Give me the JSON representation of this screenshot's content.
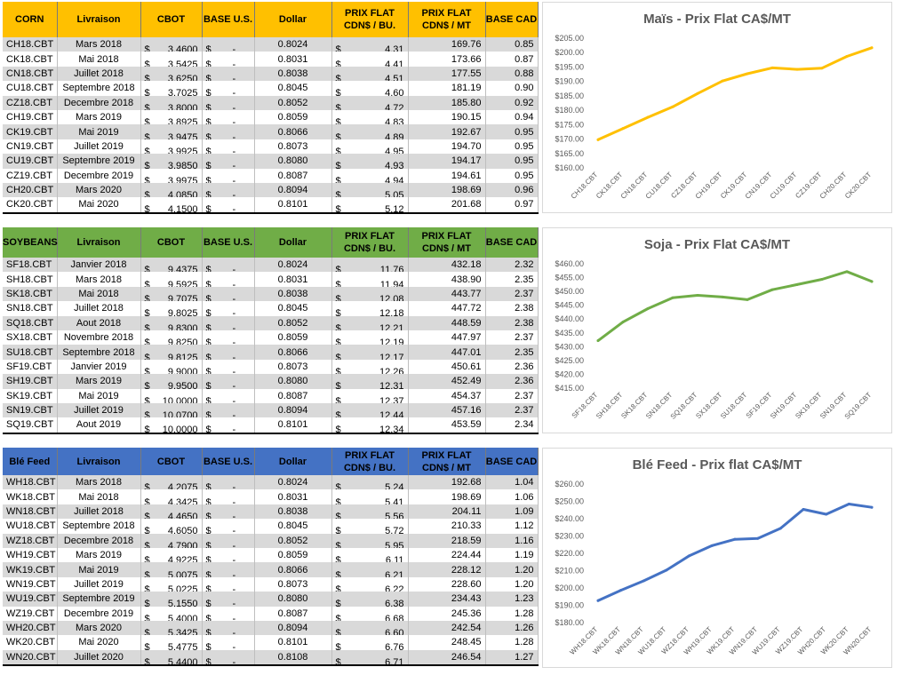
{
  "tables": [
    {
      "id": "corn",
      "headers": [
        "CORN",
        "Livraison",
        "CBOT",
        "BASE U.S.",
        "Dollar",
        "PRIX FLAT\nCDN$ / BU.",
        "PRIX FLAT\nCDN$ / MT",
        "BASE CAD"
      ],
      "rows": [
        [
          "CH18.CBT",
          "Mars 2018",
          "3.4600",
          "-",
          "0.8024",
          "4.31",
          "169.76",
          "0.85"
        ],
        [
          "CK18.CBT",
          "Mai 2018",
          "3.5425",
          "-",
          "0.8031",
          "4.41",
          "173.66",
          "0.87"
        ],
        [
          "CN18.CBT",
          "Juillet 2018",
          "3.6250",
          "-",
          "0.8038",
          "4.51",
          "177.55",
          "0.88"
        ],
        [
          "CU18.CBT",
          "Septembre 2018",
          "3.7025",
          "-",
          "0.8045",
          "4.60",
          "181.19",
          "0.90"
        ],
        [
          "CZ18.CBT",
          "Decembre 2018",
          "3.8000",
          "-",
          "0.8052",
          "4.72",
          "185.80",
          "0.92"
        ],
        [
          "CH19.CBT",
          "Mars 2019",
          "3.8925",
          "-",
          "0.8059",
          "4.83",
          "190.15",
          "0.94"
        ],
        [
          "CK19.CBT",
          "Mai 2019",
          "3.9475",
          "-",
          "0.8066",
          "4.89",
          "192.67",
          "0.95"
        ],
        [
          "CN19.CBT",
          "Juillet 2019",
          "3.9925",
          "-",
          "0.8073",
          "4.95",
          "194.70",
          "0.95"
        ],
        [
          "CU19.CBT",
          "Septembre 2019",
          "3.9850",
          "-",
          "0.8080",
          "4.93",
          "194.17",
          "0.95"
        ],
        [
          "CZ19.CBT",
          "Decembre 2019",
          "3.9975",
          "-",
          "0.8087",
          "4.94",
          "194.61",
          "0.95"
        ],
        [
          "CH20.CBT",
          "Mars 2020",
          "4.0850",
          "-",
          "0.8094",
          "5.05",
          "198.69",
          "0.96"
        ],
        [
          "CK20.CBT",
          "Mai 2020",
          "4.1500",
          "-",
          "0.8101",
          "5.12",
          "201.68",
          "0.97"
        ]
      ]
    },
    {
      "id": "soy",
      "headers": [
        "SOYBEANS",
        "Livraison",
        "CBOT",
        "BASE U.S.",
        "Dollar",
        "PRIX FLAT\nCDN$ / BU.",
        "PRIX FLAT\nCDN$ / MT",
        "BASE CAD"
      ],
      "rows": [
        [
          "SF18.CBT",
          "Janvier 2018",
          "9.4375",
          "-",
          "0.8024",
          "11.76",
          "432.18",
          "2.32"
        ],
        [
          "SH18.CBT",
          "Mars 2018",
          "9.5925",
          "-",
          "0.8031",
          "11.94",
          "438.90",
          "2.35"
        ],
        [
          "SK18.CBT",
          "Mai 2018",
          "9.7075",
          "-",
          "0.8038",
          "12.08",
          "443.77",
          "2.37"
        ],
        [
          "SN18.CBT",
          "Juillet 2018",
          "9.8025",
          "-",
          "0.8045",
          "12.18",
          "447.72",
          "2.38"
        ],
        [
          "SQ18.CBT",
          "Aout 2018",
          "9.8300",
          "-",
          "0.8052",
          "12.21",
          "448.59",
          "2.38"
        ],
        [
          "SX18.CBT",
          "Novembre 2018",
          "9.8250",
          "-",
          "0.8059",
          "12.19",
          "447.97",
          "2.37"
        ],
        [
          "SU18.CBT",
          "Septembre 2018",
          "9.8125",
          "-",
          "0.8066",
          "12.17",
          "447.01",
          "2.35"
        ],
        [
          "SF19.CBT",
          "Janvier 2019",
          "9.9000",
          "-",
          "0.8073",
          "12.26",
          "450.61",
          "2.36"
        ],
        [
          "SH19.CBT",
          "Mars 2019",
          "9.9500",
          "-",
          "0.8080",
          "12.31",
          "452.49",
          "2.36"
        ],
        [
          "SK19.CBT",
          "Mai 2019",
          "10.0000",
          "-",
          "0.8087",
          "12.37",
          "454.37",
          "2.37"
        ],
        [
          "SN19.CBT",
          "Juillet 2019",
          "10.0700",
          "-",
          "0.8094",
          "12.44",
          "457.16",
          "2.37"
        ],
        [
          "SQ19.CBT",
          "Aout 2019",
          "10.0000",
          "-",
          "0.8101",
          "12.34",
          "453.59",
          "2.34"
        ]
      ]
    },
    {
      "id": "ble",
      "headers": [
        "Blé Feed",
        "Livraison",
        "CBOT",
        "BASE U.S.",
        "Dollar",
        "PRIX FLAT\nCDN$ / BU.",
        "PRIX FLAT\nCDN$ / MT",
        "BASE CAD"
      ],
      "rows": [
        [
          "WH18.CBT",
          "Mars 2018",
          "4.2075",
          "-",
          "0.8024",
          "5.24",
          "192.68",
          "1.04"
        ],
        [
          "WK18.CBT",
          "Mai 2018",
          "4.3425",
          "-",
          "0.8031",
          "5.41",
          "198.69",
          "1.06"
        ],
        [
          "WN18.CBT",
          "Juillet 2018",
          "4.4650",
          "-",
          "0.8038",
          "5.56",
          "204.11",
          "1.09"
        ],
        [
          "WU18.CBT",
          "Septembre 2018",
          "4.6050",
          "-",
          "0.8045",
          "5.72",
          "210.33",
          "1.12"
        ],
        [
          "WZ18.CBT",
          "Decembre 2018",
          "4.7900",
          "-",
          "0.8052",
          "5.95",
          "218.59",
          "1.16"
        ],
        [
          "WH19.CBT",
          "Mars 2019",
          "4.9225",
          "-",
          "0.8059",
          "6.11",
          "224.44",
          "1.19"
        ],
        [
          "WK19.CBT",
          "Mai 2019",
          "5.0075",
          "-",
          "0.8066",
          "6.21",
          "228.12",
          "1.20"
        ],
        [
          "WN19.CBT",
          "Juillet 2019",
          "5.0225",
          "-",
          "0.8073",
          "6.22",
          "228.60",
          "1.20"
        ],
        [
          "WU19.CBT",
          "Septembre 2019",
          "5.1550",
          "-",
          "0.8080",
          "6.38",
          "234.43",
          "1.23"
        ],
        [
          "WZ19.CBT",
          "Decembre 2019",
          "5.4000",
          "-",
          "0.8087",
          "6.68",
          "245.36",
          "1.28"
        ],
        [
          "WH20.CBT",
          "Mars 2020",
          "5.3425",
          "-",
          "0.8094",
          "6.60",
          "242.54",
          "1.26"
        ],
        [
          "WK20.CBT",
          "Mai 2020",
          "5.4775",
          "-",
          "0.8101",
          "6.76",
          "248.45",
          "1.28"
        ],
        [
          "WN20.CBT",
          "Juillet 2020",
          "5.4400",
          "-",
          "0.8108",
          "6.71",
          "246.54",
          "1.27"
        ]
      ]
    }
  ],
  "chart_data": [
    {
      "type": "line",
      "title": "Maïs - Prix Flat CA$/MT",
      "color": "#ffc000",
      "categories": [
        "CH18.CBT",
        "CK18.CBT",
        "CN18.CBT",
        "CU18.CBT",
        "CZ18.CBT",
        "CH19.CBT",
        "CK19.CBT",
        "CN19.CBT",
        "CU19.CBT",
        "CZ19.CBT",
        "CH20.CBT",
        "CK20.CBT"
      ],
      "values": [
        169.76,
        173.66,
        177.55,
        181.19,
        185.8,
        190.15,
        192.67,
        194.7,
        194.17,
        194.61,
        198.69,
        201.68
      ],
      "ylim": [
        160,
        205
      ],
      "ystep": 5,
      "ytick_labels": [
        "$160.00",
        "$165.00",
        "$170.00",
        "$175.00",
        "$180.00",
        "$185.00",
        "$190.00",
        "$195.00",
        "$200.00",
        "$205.00"
      ],
      "xlabel": "",
      "ylabel": "",
      "grid": false,
      "legend": "none"
    },
    {
      "type": "line",
      "title": "Soja - Prix Flat CA$/MT",
      "color": "#70ad47",
      "categories": [
        "SF18.CBT",
        "SH18.CBT",
        "SK18.CBT",
        "SN18.CBT",
        "SQ18.CBT",
        "SX18.CBT",
        "SU18.CBT",
        "SF19.CBT",
        "SH19.CBT",
        "SK19.CBT",
        "SN19.CBT",
        "SQ19.CBT"
      ],
      "values": [
        432.18,
        438.9,
        443.77,
        447.72,
        448.59,
        447.97,
        447.01,
        450.61,
        452.49,
        454.37,
        457.16,
        453.59
      ],
      "ylim": [
        415,
        460
      ],
      "ystep": 5,
      "ytick_labels": [
        "$415.00",
        "$420.00",
        "$425.00",
        "$430.00",
        "$435.00",
        "$440.00",
        "$445.00",
        "$450.00",
        "$455.00",
        "$460.00"
      ],
      "xlabel": "",
      "ylabel": "",
      "grid": false,
      "legend": "none"
    },
    {
      "type": "line",
      "title": "Blé Feed - Prix flat CA$/MT",
      "color": "#4472c4",
      "categories": [
        "WH18.CBT",
        "WK18.CBT",
        "WN18.CBT",
        "WU18.CBT",
        "WZ18.CBT",
        "WH19.CBT",
        "WK19.CBT",
        "WN19.CBT",
        "WU19.CBT",
        "WZ19.CBT",
        "WH20.CBT",
        "WK20.CBT",
        "WN20.CBT"
      ],
      "values": [
        192.68,
        198.69,
        204.11,
        210.33,
        218.59,
        224.44,
        228.12,
        228.6,
        234.43,
        245.36,
        242.54,
        248.45,
        246.54
      ],
      "ylim": [
        180,
        260
      ],
      "ystep": 10,
      "ytick_labels": [
        "$180.00",
        "$190.00",
        "$200.00",
        "$210.00",
        "$220.00",
        "$230.00",
        "$240.00",
        "$250.00",
        "$260.00"
      ],
      "xlabel": "",
      "ylabel": "",
      "grid": false,
      "legend": "none"
    }
  ]
}
